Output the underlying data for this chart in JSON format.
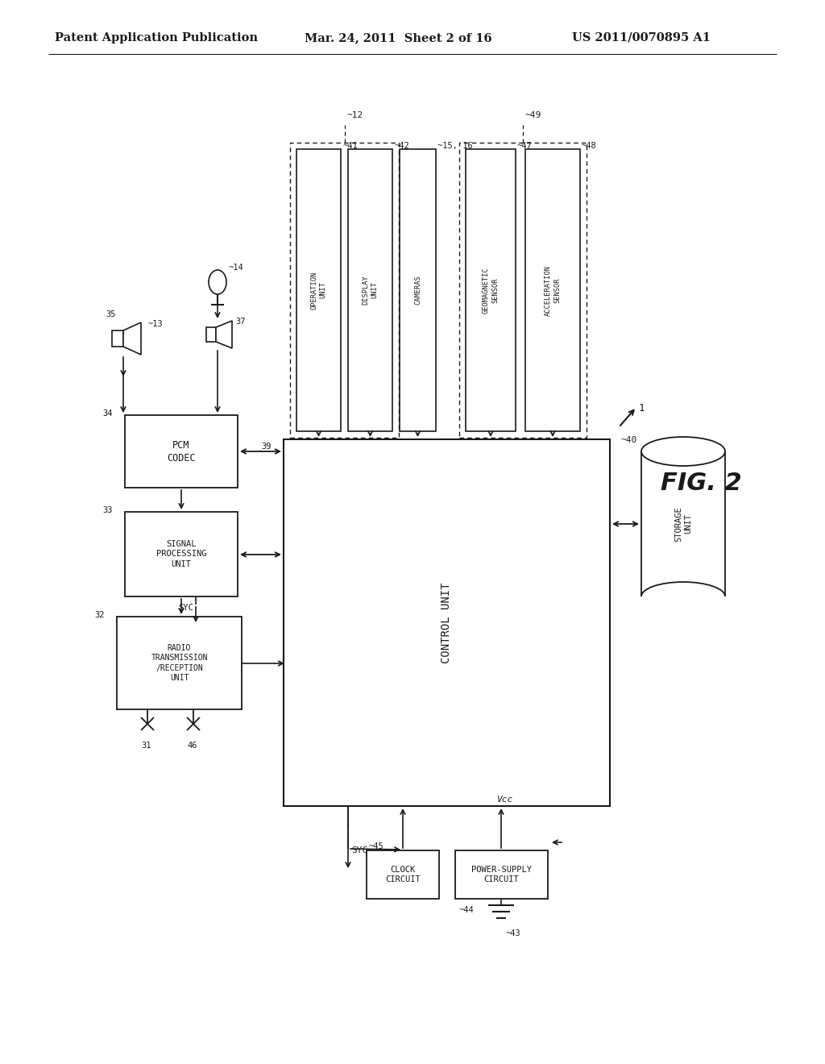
{
  "header_left": "Patent Application Publication",
  "header_mid": "Mar. 24, 2011  Sheet 2 of 16",
  "header_right": "US 2011/0070895 A1",
  "fig_label": "FIG. 2",
  "background": "#ffffff",
  "line_color": "#1a1a1a",
  "box_color": "#ffffff",
  "font_size_header": 10.5,
  "font_size_box": 7.5,
  "font_size_fig": 22,
  "font_size_label": 8
}
